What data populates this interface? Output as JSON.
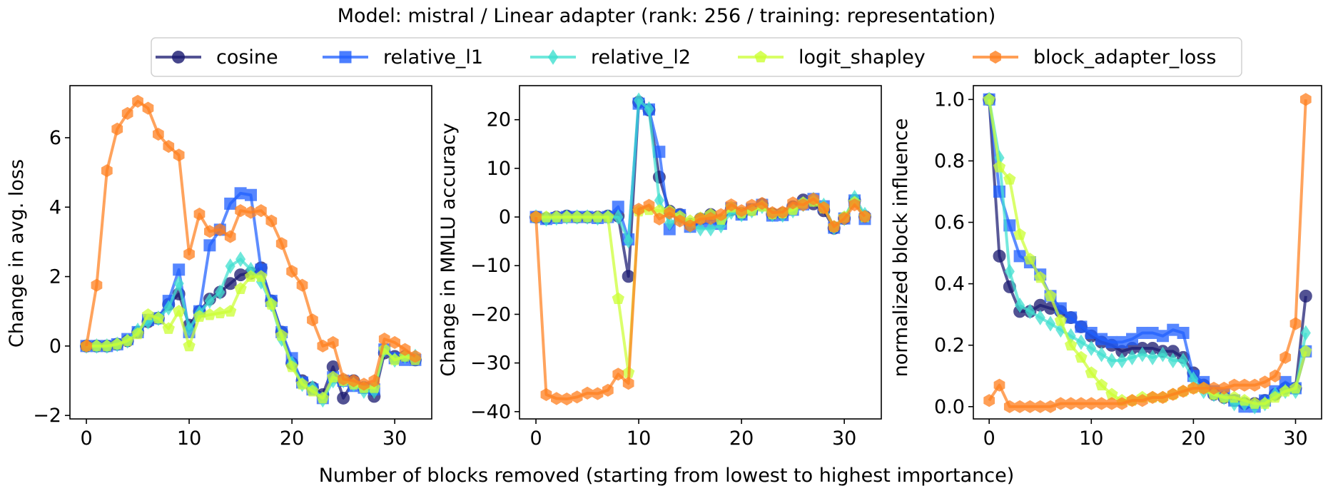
{
  "figure": {
    "title": "Model: mistral / Linear adapter (rank: 256 / training: representation)",
    "xlabel": "Number of blocks removed (starting from lowest to highest importance)"
  },
  "legend": {
    "placement": "top-center",
    "entries": [
      {
        "name": "cosine",
        "color": "#191970",
        "marker": "circle"
      },
      {
        "name": "relative_l1",
        "color": "#1f5fff",
        "marker": "square"
      },
      {
        "name": "relative_l2",
        "color": "#40e0d0",
        "marker": "diamond"
      },
      {
        "name": "logit_shapley",
        "color": "#ccff33",
        "marker": "pentagon"
      },
      {
        "name": "block_adapter_loss",
        "color": "#ff7f1e",
        "marker": "hexagon"
      }
    ]
  },
  "chart_data": [
    {
      "type": "line",
      "ylabel": "Change in avg. loss",
      "xlim": [
        -1.6,
        33.6
      ],
      "ylim": [
        -2.1,
        7.5
      ],
      "xticks": [
        0,
        10,
        20,
        30
      ],
      "yticks": [
        -2,
        0,
        2,
        4,
        6
      ],
      "ytick_labels": [
        "−2",
        "0",
        "2",
        "4",
        "6"
      ],
      "x": [
        0,
        1,
        2,
        3,
        4,
        5,
        6,
        7,
        8,
        9,
        10,
        11,
        12,
        13,
        14,
        15,
        16,
        17,
        18,
        19,
        20,
        21,
        22,
        23,
        24,
        25,
        26,
        27,
        28,
        29,
        30,
        31,
        32
      ],
      "series": [
        {
          "name": "cosine",
          "values": [
            0,
            0,
            0,
            0.05,
            0.15,
            0.4,
            0.7,
            0.8,
            1.2,
            1.5,
            0.6,
            1.0,
            1.35,
            1.55,
            1.8,
            2.05,
            2.1,
            2.25,
            1.3,
            0.4,
            -0.5,
            -1.0,
            -1.2,
            -1.4,
            -0.6,
            -1.5,
            -1.0,
            -1.2,
            -1.45,
            -0.2,
            -0.3,
            -0.3,
            -0.4
          ]
        },
        {
          "name": "relative_l1",
          "values": [
            0,
            0,
            0,
            0.05,
            0.2,
            0.4,
            0.75,
            0.8,
            1.3,
            2.2,
            0.4,
            1.0,
            2.9,
            3.35,
            4.1,
            4.4,
            4.35,
            2.2,
            1.3,
            0.4,
            -0.35,
            -1.05,
            -1.25,
            -1.5,
            -0.9,
            -1.0,
            -1.15,
            -1.2,
            -1.25,
            -0.1,
            -0.35,
            -0.4,
            -0.4
          ]
        },
        {
          "name": "relative_l2",
          "values": [
            0,
            0,
            0,
            0.05,
            0.15,
            0.45,
            0.7,
            0.8,
            1.1,
            1.8,
            0.5,
            0.95,
            1.3,
            1.55,
            2.3,
            2.5,
            2.2,
            1.85,
            1.2,
            0.2,
            -0.5,
            -1.1,
            -1.2,
            -1.55,
            -1.0,
            -1.0,
            -1.1,
            -1.3,
            -1.3,
            -0.1,
            -0.4,
            -0.3,
            -0.3
          ]
        },
        {
          "name": "logit_shapley",
          "values": [
            0,
            0,
            0,
            0.05,
            0.15,
            0.35,
            0.9,
            0.8,
            0.5,
            1.0,
            0,
            0.85,
            0.9,
            0.95,
            1.0,
            1.65,
            2.0,
            2.0,
            1.2,
            0.3,
            -0.6,
            -1.1,
            -1.3,
            -1.5,
            -0.9,
            -1.0,
            -1.1,
            -1.2,
            -1.2,
            -0.1,
            -0.4,
            -0.3,
            -0.4
          ]
        },
        {
          "name": "block_adapter_loss",
          "values": [
            0,
            1.75,
            5.05,
            6.25,
            6.7,
            7.05,
            6.85,
            6.1,
            5.75,
            5.5,
            2.65,
            3.8,
            3.3,
            3.35,
            3.15,
            3.9,
            3.85,
            3.9,
            3.6,
            2.95,
            2.15,
            1.75,
            0.75,
            0.0,
            0.1,
            -0.95,
            -1.0,
            -1.1,
            -1.0,
            0.2,
            0.1,
            -0.1,
            -0.3
          ]
        }
      ]
    },
    {
      "type": "line",
      "ylabel": "Change in MMLU accuracy",
      "xlim": [
        -1.6,
        33.6
      ],
      "ylim": [
        -41.5,
        27
      ],
      "xticks": [
        0,
        10,
        20,
        30
      ],
      "yticks": [
        -40,
        -30,
        -20,
        -10,
        0,
        10,
        20
      ],
      "ytick_labels": [
        "−40",
        "−30",
        "−20",
        "−10",
        "0",
        "10",
        "20"
      ],
      "x": [
        0,
        1,
        2,
        3,
        4,
        5,
        6,
        7,
        8,
        9,
        10,
        11,
        12,
        13,
        14,
        15,
        16,
        17,
        18,
        19,
        20,
        21,
        22,
        23,
        24,
        25,
        26,
        27,
        28,
        29,
        30,
        31,
        32
      ],
      "series": [
        {
          "name": "cosine",
          "values": [
            0,
            -0.3,
            0,
            0.2,
            0,
            0,
            0,
            0.2,
            0.2,
            -12.2,
            23.6,
            22.0,
            8.2,
            1.2,
            0.5,
            -1.5,
            -0.4,
            0.5,
            -0.8,
            1.5,
            0.7,
            1.5,
            2.6,
            0.6,
            0.7,
            2.1,
            3.5,
            2.7,
            1.3,
            -2.3,
            -0.3,
            3.4,
            0.1
          ]
        },
        {
          "name": "relative_l1",
          "values": [
            0,
            -0.4,
            -0.2,
            0,
            0,
            0,
            -0.2,
            0,
            2.1,
            -4.6,
            23.3,
            22.1,
            13.4,
            -2.5,
            0.4,
            -2.0,
            -1.2,
            -1.2,
            -1.4,
            1.8,
            0.5,
            1.6,
            2.5,
            0.3,
            0.4,
            1.5,
            2.6,
            3.7,
            2.2,
            -2.2,
            -0.3,
            3.4,
            -0.4
          ]
        },
        {
          "name": "relative_l2",
          "values": [
            0,
            -0.4,
            -0.2,
            0,
            0,
            0,
            -0.2,
            0,
            0,
            -4.9,
            24.0,
            22.2,
            3.4,
            -1.2,
            -0.4,
            -1.8,
            -2.4,
            -2.4,
            -1.8,
            1.0,
            0.5,
            1.3,
            2.2,
            0.5,
            0.4,
            1.3,
            2.6,
            3.6,
            2.4,
            -2.2,
            -0.3,
            4.0,
            0.5
          ]
        },
        {
          "name": "logit_shapley",
          "values": [
            0,
            0,
            0,
            0,
            0,
            0,
            0,
            0,
            -16.8,
            -32.0,
            1.2,
            1.5,
            1.3,
            1.2,
            0.1,
            -0.8,
            -0.2,
            0.5,
            -0.5,
            2.0,
            0.8,
            1.3,
            2.2,
            0.6,
            0.8,
            1.5,
            2.9,
            3.2,
            1.8,
            -2.0,
            0,
            3.0,
            0
          ]
        },
        {
          "name": "block_adapter_loss",
          "values": [
            0,
            -36.5,
            -37.3,
            -37.4,
            -37.0,
            -36.2,
            -36.3,
            -35.6,
            -32.3,
            -34.2,
            1.6,
            2.4,
            -0.4,
            0.8,
            -0.8,
            -1.8,
            -0.4,
            -0.3,
            0.5,
            2.5,
            1.3,
            2.4,
            2.8,
            0.9,
            1.0,
            2.9,
            2.5,
            3.7,
            1.9,
            -2.0,
            -0.3,
            2.5,
            0.1
          ]
        }
      ]
    },
    {
      "type": "line",
      "ylabel": "normalized block influence",
      "xlim": [
        -1.55,
        32.55
      ],
      "ylim": [
        -0.04,
        1.045
      ],
      "xticks": [
        0,
        10,
        20,
        30
      ],
      "yticks": [
        0.0,
        0.2,
        0.4,
        0.6,
        0.8,
        1.0
      ],
      "ytick_labels": [
        "0.0",
        "0.2",
        "0.4",
        "0.6",
        "0.8",
        "1.0"
      ],
      "x": [
        0,
        1,
        2,
        3,
        4,
        5,
        6,
        7,
        8,
        9,
        10,
        11,
        12,
        13,
        14,
        15,
        16,
        17,
        18,
        19,
        20,
        21,
        22,
        23,
        24,
        25,
        26,
        27,
        28,
        29,
        30,
        31
      ],
      "series": [
        {
          "name": "cosine",
          "values": [
            1.0,
            0.49,
            0.39,
            0.31,
            0.31,
            0.33,
            0.32,
            0.31,
            0.29,
            0.26,
            0.23,
            0.21,
            0.2,
            0.18,
            0.19,
            0.19,
            0.19,
            0.18,
            0.18,
            0.16,
            0.11,
            0.07,
            0.04,
            0.03,
            0.02,
            0.01,
            0.01,
            0.02,
            0.04,
            0.06,
            0.06,
            0.36
          ]
        },
        {
          "name": "relative_l1",
          "values": [
            1.0,
            0.7,
            0.59,
            0.49,
            0.47,
            0.43,
            0.36,
            0.32,
            0.29,
            0.26,
            0.24,
            0.22,
            0.21,
            0.21,
            0.22,
            0.24,
            0.24,
            0.23,
            0.25,
            0.24,
            0.1,
            0.08,
            0.05,
            0.04,
            0.02,
            0.0,
            0.0,
            0.02,
            0.05,
            0.08,
            0.06,
            0.18
          ]
        },
        {
          "name": "relative_l2",
          "values": [
            1.0,
            0.81,
            0.44,
            0.33,
            0.31,
            0.29,
            0.27,
            0.25,
            0.23,
            0.21,
            0.19,
            0.17,
            0.15,
            0.15,
            0.16,
            0.17,
            0.16,
            0.17,
            0.15,
            0.15,
            0.09,
            0.05,
            0.04,
            0.03,
            0.01,
            0.01,
            0.0,
            0.01,
            0.04,
            0.05,
            0.05,
            0.24
          ]
        },
        {
          "name": "logit_shapley",
          "values": [
            1.0,
            0.78,
            0.74,
            0.56,
            0.48,
            0.42,
            0.36,
            0.28,
            0.2,
            0.16,
            0.11,
            0.07,
            0.04,
            0.02,
            0.02,
            0.03,
            0.03,
            0.03,
            0.04,
            0.05,
            0.06,
            0.06,
            0.04,
            0.03,
            0.03,
            0.02,
            0.01,
            0.01,
            0.03,
            0.05,
            0.06,
            0.18
          ]
        },
        {
          "name": "block_adapter_loss",
          "values": [
            0.02,
            0.07,
            0.0,
            0.0,
            0.0,
            0.0,
            0.0,
            0.01,
            0.01,
            0.01,
            0.01,
            0.01,
            0.01,
            0.01,
            0.02,
            0.02,
            0.03,
            0.03,
            0.04,
            0.05,
            0.06,
            0.06,
            0.06,
            0.06,
            0.07,
            0.07,
            0.07,
            0.08,
            0.1,
            0.16,
            0.27,
            1.0
          ]
        }
      ]
    }
  ]
}
